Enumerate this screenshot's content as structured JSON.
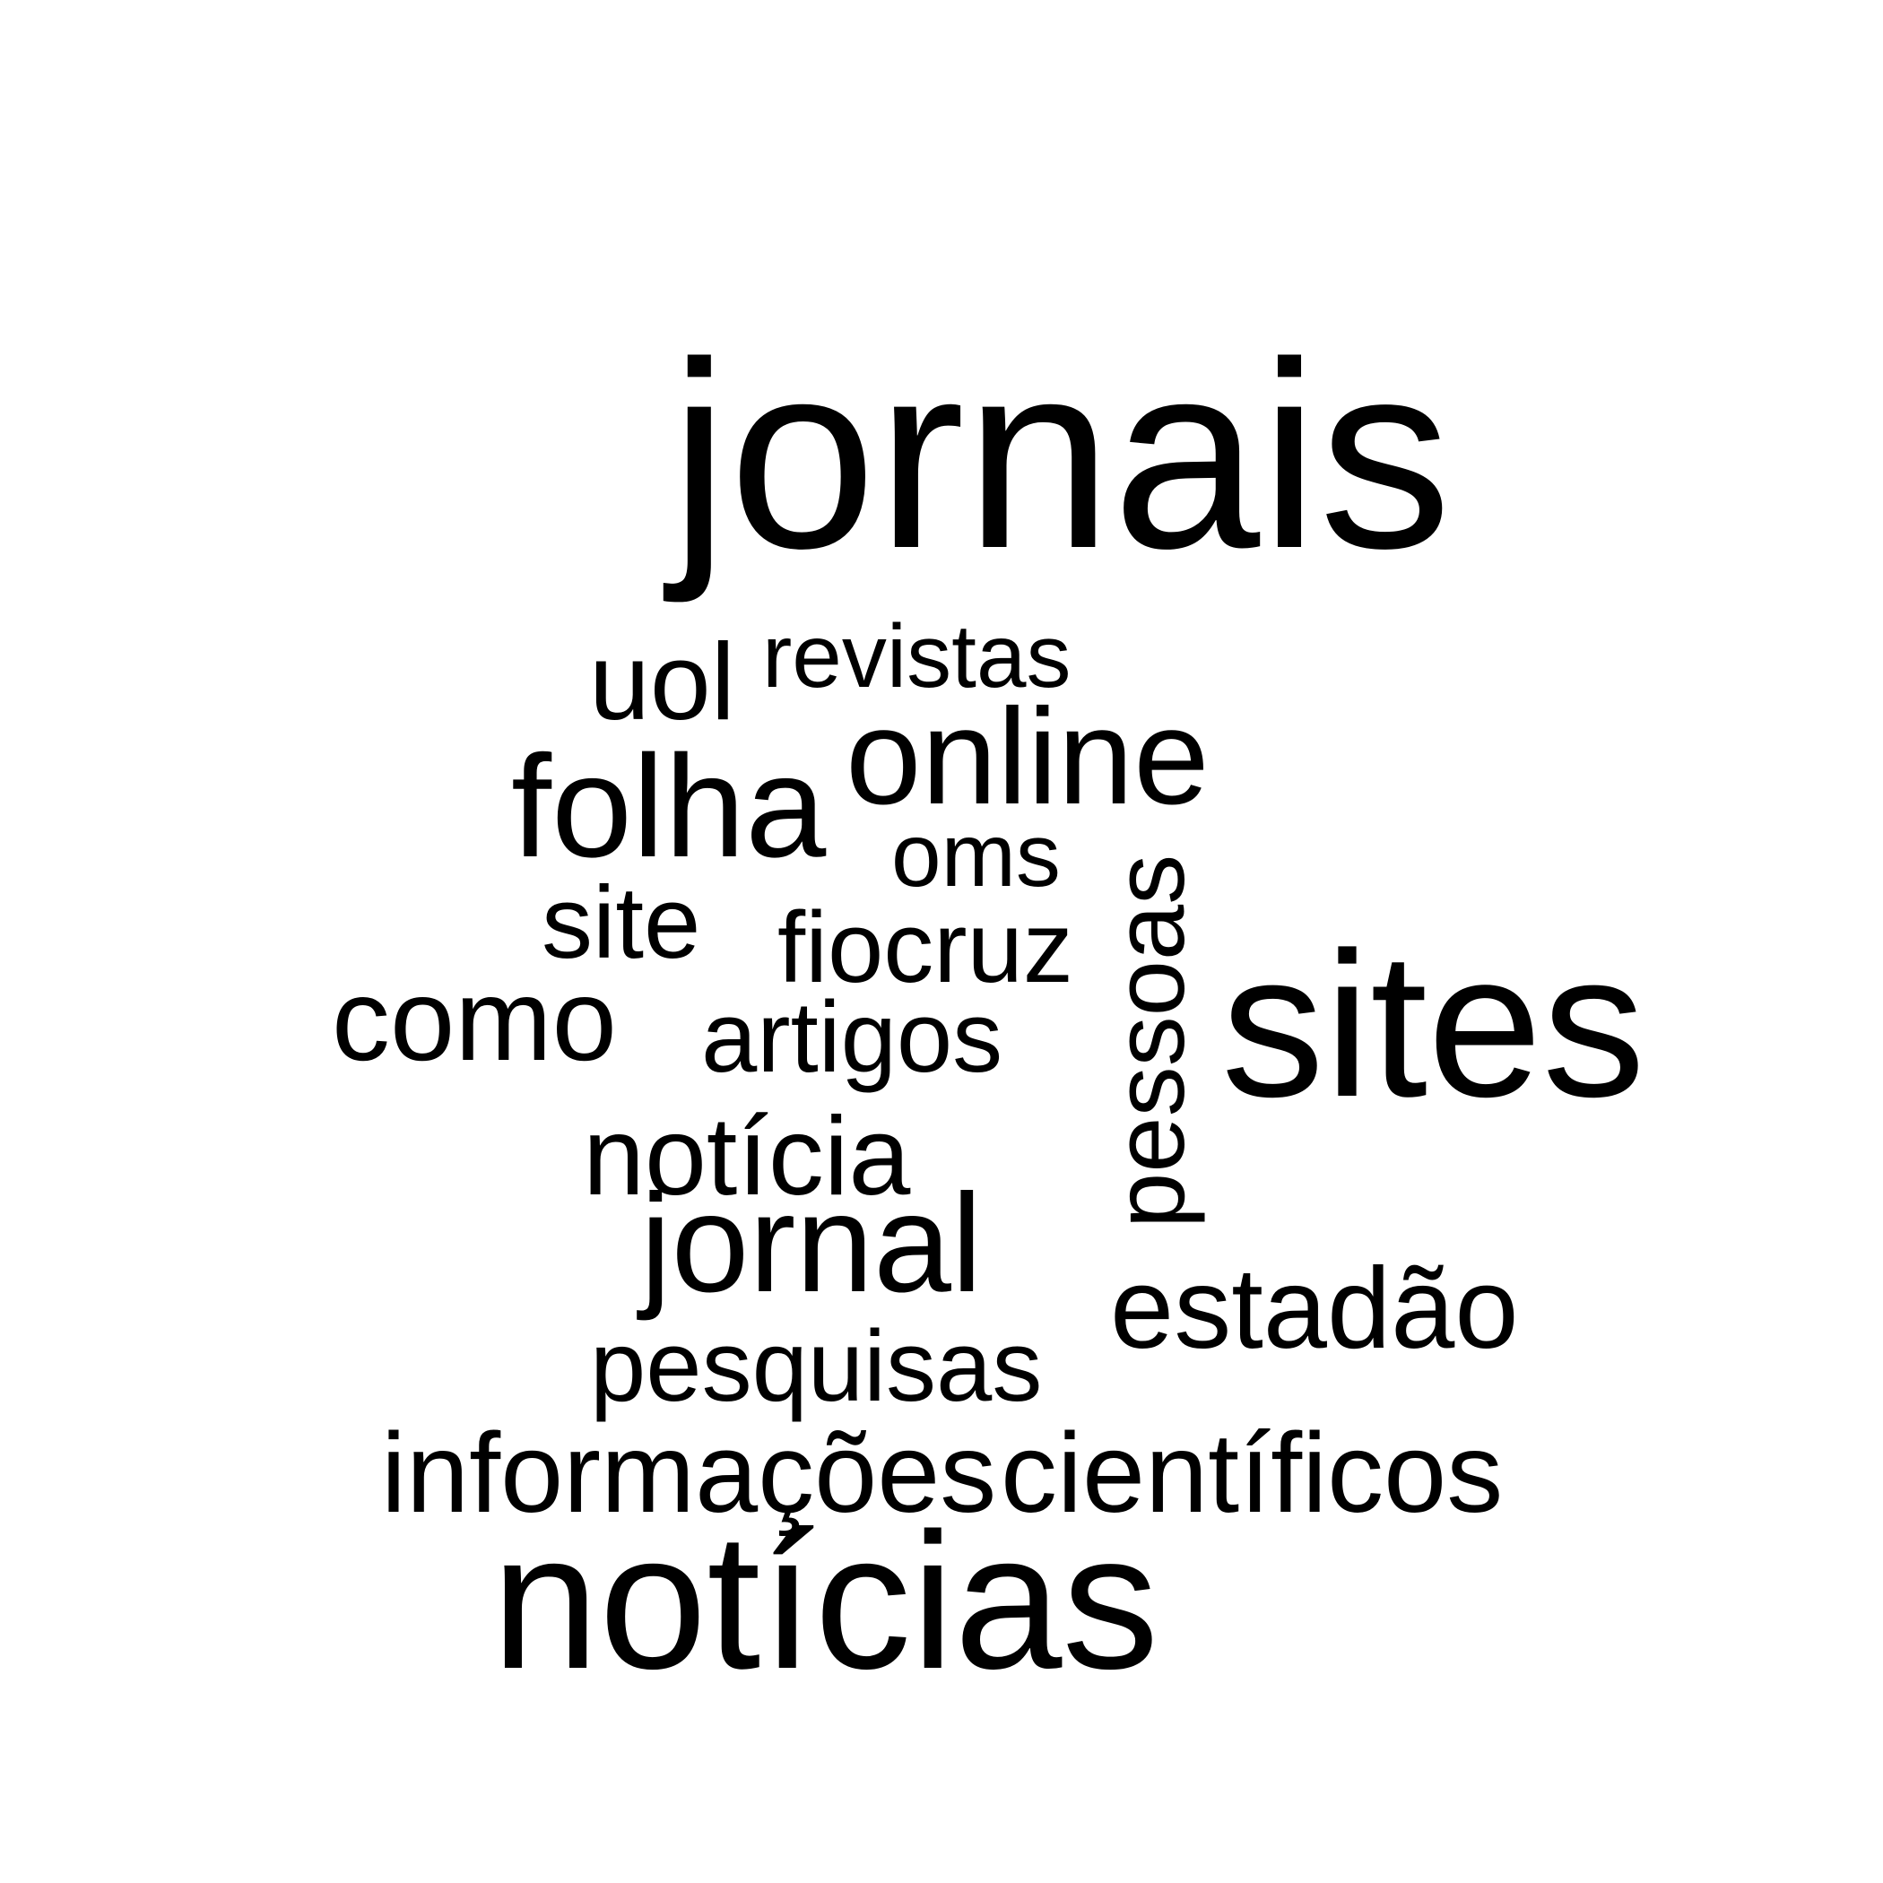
{
  "words": [
    {
      "text": "jornais",
      "rotated": false
    },
    {
      "text": "uol",
      "rotated": false
    },
    {
      "text": "revistas",
      "rotated": false
    },
    {
      "text": "online",
      "rotated": false
    },
    {
      "text": "folha",
      "rotated": false
    },
    {
      "text": "oms",
      "rotated": false
    },
    {
      "text": "site",
      "rotated": false
    },
    {
      "text": "fiocruz",
      "rotated": false
    },
    {
      "text": "como",
      "rotated": false
    },
    {
      "text": "artigos",
      "rotated": false
    },
    {
      "text": "pessoas",
      "rotated": true
    },
    {
      "text": "sites",
      "rotated": false
    },
    {
      "text": "notícia",
      "rotated": false
    },
    {
      "text": "jornal",
      "rotated": false
    },
    {
      "text": "estadão",
      "rotated": false
    },
    {
      "text": "pesquisas",
      "rotated": false
    },
    {
      "text": "informações",
      "rotated": false
    },
    {
      "text": "científicos",
      "rotated": false
    },
    {
      "text": "notícias",
      "rotated": false
    }
  ]
}
